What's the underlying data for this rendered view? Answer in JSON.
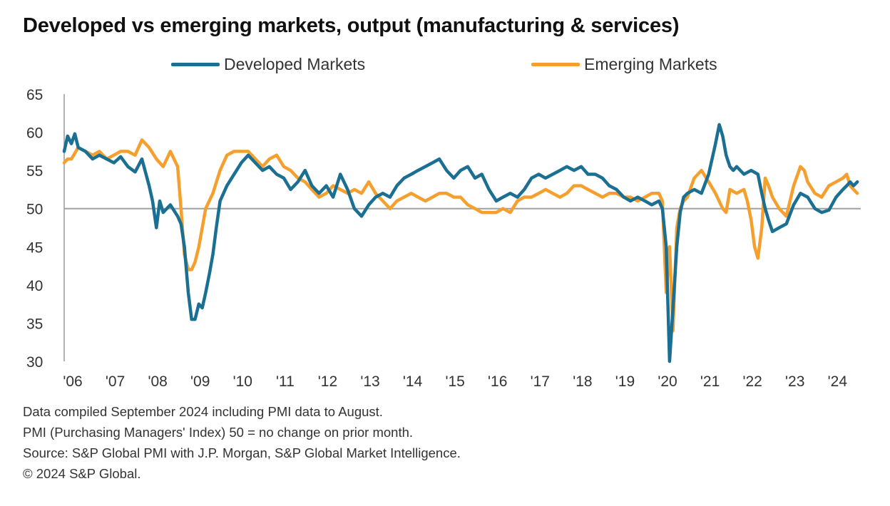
{
  "chart_data": {
    "type": "line",
    "title": "Developed vs emerging markets, output (manufacturing & services)",
    "xlabel": "",
    "ylabel": "",
    "ylim": [
      30,
      65
    ],
    "yticks": [
      30,
      35,
      40,
      45,
      50,
      55,
      60,
      65
    ],
    "xlim": [
      2006.0,
      2024.75
    ],
    "xticks": [
      "'06",
      "'07",
      "'08",
      "'09",
      "'10",
      "'11",
      "'12",
      "'13",
      "'14",
      "'15",
      "'16",
      "'17",
      "'18",
      "'19",
      "'20",
      "'21",
      "'22",
      "'23",
      "'24"
    ],
    "reference_line": 50,
    "legend_position": "top",
    "grid": false,
    "series": [
      {
        "name": "Developed Markets",
        "color": "#1a6f93",
        "points": [
          [
            2006.0,
            57.5
          ],
          [
            2006.08,
            59.5
          ],
          [
            2006.17,
            58.5
          ],
          [
            2006.25,
            59.8
          ],
          [
            2006.33,
            58.0
          ],
          [
            2006.5,
            57.5
          ],
          [
            2006.67,
            56.5
          ],
          [
            2006.83,
            57.0
          ],
          [
            2007.0,
            56.5
          ],
          [
            2007.17,
            56.0
          ],
          [
            2007.33,
            56.8
          ],
          [
            2007.5,
            55.5
          ],
          [
            2007.67,
            54.8
          ],
          [
            2007.83,
            56.5
          ],
          [
            2008.0,
            53.0
          ],
          [
            2008.08,
            51.0
          ],
          [
            2008.17,
            47.5
          ],
          [
            2008.25,
            51.0
          ],
          [
            2008.33,
            49.5
          ],
          [
            2008.5,
            50.5
          ],
          [
            2008.67,
            49.0
          ],
          [
            2008.75,
            48.0
          ],
          [
            2008.83,
            45.0
          ],
          [
            2008.92,
            39.0
          ],
          [
            2009.0,
            35.5
          ],
          [
            2009.08,
            35.5
          ],
          [
            2009.17,
            37.5
          ],
          [
            2009.25,
            37.0
          ],
          [
            2009.33,
            39.0
          ],
          [
            2009.42,
            41.5
          ],
          [
            2009.5,
            44.0
          ],
          [
            2009.58,
            47.5
          ],
          [
            2009.67,
            51.0
          ],
          [
            2009.83,
            53.0
          ],
          [
            2010.0,
            54.5
          ],
          [
            2010.17,
            56.0
          ],
          [
            2010.33,
            57.0
          ],
          [
            2010.5,
            56.0
          ],
          [
            2010.67,
            55.0
          ],
          [
            2010.83,
            55.5
          ],
          [
            2011.0,
            54.5
          ],
          [
            2011.17,
            54.0
          ],
          [
            2011.33,
            52.5
          ],
          [
            2011.5,
            53.5
          ],
          [
            2011.67,
            55.0
          ],
          [
            2011.83,
            53.0
          ],
          [
            2012.0,
            52.0
          ],
          [
            2012.17,
            53.0
          ],
          [
            2012.33,
            51.5
          ],
          [
            2012.5,
            54.5
          ],
          [
            2012.67,
            52.5
          ],
          [
            2012.83,
            50.0
          ],
          [
            2013.0,
            49.0
          ],
          [
            2013.17,
            50.5
          ],
          [
            2013.33,
            51.5
          ],
          [
            2013.5,
            52.0
          ],
          [
            2013.67,
            51.5
          ],
          [
            2013.83,
            53.0
          ],
          [
            2014.0,
            54.0
          ],
          [
            2014.17,
            54.5
          ],
          [
            2014.33,
            55.0
          ],
          [
            2014.5,
            55.5
          ],
          [
            2014.67,
            56.0
          ],
          [
            2014.83,
            56.5
          ],
          [
            2015.0,
            55.0
          ],
          [
            2015.17,
            54.0
          ],
          [
            2015.33,
            55.0
          ],
          [
            2015.5,
            55.5
          ],
          [
            2015.67,
            54.0
          ],
          [
            2015.83,
            54.5
          ],
          [
            2016.0,
            52.5
          ],
          [
            2016.17,
            51.0
          ],
          [
            2016.33,
            51.5
          ],
          [
            2016.5,
            52.0
          ],
          [
            2016.67,
            51.5
          ],
          [
            2016.83,
            52.5
          ],
          [
            2017.0,
            54.0
          ],
          [
            2017.17,
            54.5
          ],
          [
            2017.33,
            54.0
          ],
          [
            2017.5,
            54.5
          ],
          [
            2017.67,
            55.0
          ],
          [
            2017.83,
            55.5
          ],
          [
            2018.0,
            55.0
          ],
          [
            2018.17,
            55.5
          ],
          [
            2018.33,
            54.5
          ],
          [
            2018.5,
            54.5
          ],
          [
            2018.67,
            54.0
          ],
          [
            2018.83,
            53.0
          ],
          [
            2019.0,
            52.5
          ],
          [
            2019.17,
            51.5
          ],
          [
            2019.33,
            51.0
          ],
          [
            2019.5,
            51.5
          ],
          [
            2019.67,
            51.0
          ],
          [
            2019.83,
            50.5
          ],
          [
            2020.0,
            51.0
          ],
          [
            2020.08,
            50.0
          ],
          [
            2020.17,
            45.0
          ],
          [
            2020.25,
            30.0
          ],
          [
            2020.33,
            37.0
          ],
          [
            2020.42,
            45.0
          ],
          [
            2020.5,
            49.5
          ],
          [
            2020.58,
            51.5
          ],
          [
            2020.67,
            52.0
          ],
          [
            2020.83,
            52.5
          ],
          [
            2021.0,
            52.0
          ],
          [
            2021.17,
            54.5
          ],
          [
            2021.33,
            58.5
          ],
          [
            2021.42,
            61.0
          ],
          [
            2021.5,
            59.5
          ],
          [
            2021.58,
            57.0
          ],
          [
            2021.67,
            55.5
          ],
          [
            2021.75,
            55.0
          ],
          [
            2021.83,
            55.5
          ],
          [
            2022.0,
            54.5
          ],
          [
            2022.17,
            55.0
          ],
          [
            2022.33,
            54.5
          ],
          [
            2022.42,
            52.0
          ],
          [
            2022.5,
            50.0
          ],
          [
            2022.58,
            48.5
          ],
          [
            2022.67,
            47.0
          ],
          [
            2022.83,
            47.5
          ],
          [
            2023.0,
            48.0
          ],
          [
            2023.17,
            50.5
          ],
          [
            2023.33,
            52.0
          ],
          [
            2023.5,
            51.5
          ],
          [
            2023.67,
            50.0
          ],
          [
            2023.83,
            49.5
          ],
          [
            2024.0,
            49.8
          ],
          [
            2024.17,
            51.5
          ],
          [
            2024.33,
            52.5
          ],
          [
            2024.42,
            53.0
          ],
          [
            2024.5,
            53.5
          ],
          [
            2024.58,
            53.0
          ],
          [
            2024.67,
            53.5
          ]
        ]
      },
      {
        "name": "Emerging Markets",
        "color": "#f5a02e",
        "points": [
          [
            2006.0,
            56.0
          ],
          [
            2006.08,
            56.5
          ],
          [
            2006.17,
            56.5
          ],
          [
            2006.33,
            58.0
          ],
          [
            2006.5,
            57.5
          ],
          [
            2006.67,
            57.0
          ],
          [
            2006.83,
            57.5
          ],
          [
            2007.0,
            56.5
          ],
          [
            2007.17,
            57.0
          ],
          [
            2007.33,
            57.5
          ],
          [
            2007.5,
            57.5
          ],
          [
            2007.67,
            57.0
          ],
          [
            2007.83,
            59.0
          ],
          [
            2008.0,
            58.0
          ],
          [
            2008.17,
            56.5
          ],
          [
            2008.33,
            55.5
          ],
          [
            2008.5,
            57.5
          ],
          [
            2008.67,
            55.5
          ],
          [
            2008.75,
            50.0
          ],
          [
            2008.83,
            44.0
          ],
          [
            2008.92,
            42.0
          ],
          [
            2009.0,
            42.0
          ],
          [
            2009.08,
            43.0
          ],
          [
            2009.17,
            45.0
          ],
          [
            2009.25,
            47.5
          ],
          [
            2009.33,
            50.0
          ],
          [
            2009.5,
            52.0
          ],
          [
            2009.67,
            55.0
          ],
          [
            2009.83,
            57.0
          ],
          [
            2010.0,
            57.5
          ],
          [
            2010.17,
            57.5
          ],
          [
            2010.33,
            57.5
          ],
          [
            2010.5,
            56.5
          ],
          [
            2010.67,
            55.5
          ],
          [
            2010.83,
            56.5
          ],
          [
            2011.0,
            57.0
          ],
          [
            2011.17,
            55.5
          ],
          [
            2011.33,
            55.0
          ],
          [
            2011.5,
            54.0
          ],
          [
            2011.67,
            53.5
          ],
          [
            2011.83,
            52.5
          ],
          [
            2012.0,
            51.5
          ],
          [
            2012.17,
            52.0
          ],
          [
            2012.33,
            53.0
          ],
          [
            2012.5,
            52.5
          ],
          [
            2012.67,
            52.0
          ],
          [
            2012.83,
            52.5
          ],
          [
            2013.0,
            52.0
          ],
          [
            2013.17,
            53.5
          ],
          [
            2013.33,
            52.0
          ],
          [
            2013.5,
            51.0
          ],
          [
            2013.67,
            50.0
          ],
          [
            2013.83,
            51.0
          ],
          [
            2014.0,
            51.5
          ],
          [
            2014.17,
            52.0
          ],
          [
            2014.33,
            51.5
          ],
          [
            2014.5,
            51.0
          ],
          [
            2014.67,
            51.5
          ],
          [
            2014.83,
            52.0
          ],
          [
            2015.0,
            52.0
          ],
          [
            2015.17,
            51.5
          ],
          [
            2015.33,
            51.5
          ],
          [
            2015.5,
            50.5
          ],
          [
            2015.67,
            50.0
          ],
          [
            2015.83,
            49.5
          ],
          [
            2016.0,
            49.5
          ],
          [
            2016.17,
            49.5
          ],
          [
            2016.33,
            50.0
          ],
          [
            2016.5,
            49.5
          ],
          [
            2016.67,
            51.0
          ],
          [
            2016.83,
            51.5
          ],
          [
            2017.0,
            51.5
          ],
          [
            2017.17,
            52.0
          ],
          [
            2017.33,
            52.5
          ],
          [
            2017.5,
            52.0
          ],
          [
            2017.67,
            51.5
          ],
          [
            2017.83,
            52.0
          ],
          [
            2018.0,
            53.0
          ],
          [
            2018.17,
            53.0
          ],
          [
            2018.33,
            52.5
          ],
          [
            2018.5,
            52.0
          ],
          [
            2018.67,
            51.5
          ],
          [
            2018.83,
            52.0
          ],
          [
            2019.0,
            52.0
          ],
          [
            2019.17,
            51.5
          ],
          [
            2019.33,
            51.5
          ],
          [
            2019.5,
            51.0
          ],
          [
            2019.67,
            51.5
          ],
          [
            2019.83,
            52.0
          ],
          [
            2020.0,
            52.0
          ],
          [
            2020.08,
            51.0
          ],
          [
            2020.17,
            39.0
          ],
          [
            2020.25,
            45.0
          ],
          [
            2020.33,
            34.0
          ],
          [
            2020.42,
            47.5
          ],
          [
            2020.5,
            50.0
          ],
          [
            2020.58,
            51.0
          ],
          [
            2020.67,
            51.5
          ],
          [
            2020.83,
            54.0
          ],
          [
            2021.0,
            55.0
          ],
          [
            2021.17,
            53.5
          ],
          [
            2021.33,
            52.0
          ],
          [
            2021.5,
            50.0
          ],
          [
            2021.58,
            49.5
          ],
          [
            2021.67,
            52.5
          ],
          [
            2021.83,
            52.0
          ],
          [
            2022.0,
            52.5
          ],
          [
            2022.08,
            51.0
          ],
          [
            2022.17,
            48.5
          ],
          [
            2022.25,
            45.0
          ],
          [
            2022.33,
            43.5
          ],
          [
            2022.42,
            47.5
          ],
          [
            2022.5,
            54.0
          ],
          [
            2022.58,
            53.0
          ],
          [
            2022.67,
            51.5
          ],
          [
            2022.83,
            50.0
          ],
          [
            2023.0,
            49.0
          ],
          [
            2023.17,
            53.0
          ],
          [
            2023.33,
            55.5
          ],
          [
            2023.42,
            55.0
          ],
          [
            2023.5,
            53.5
          ],
          [
            2023.67,
            52.0
          ],
          [
            2023.83,
            51.5
          ],
          [
            2024.0,
            53.0
          ],
          [
            2024.17,
            53.5
          ],
          [
            2024.33,
            54.0
          ],
          [
            2024.42,
            54.5
          ],
          [
            2024.5,
            53.0
          ],
          [
            2024.58,
            52.5
          ],
          [
            2024.67,
            52.0
          ]
        ]
      }
    ]
  },
  "legend": {
    "developed_label": "Developed Markets",
    "emerging_label": "Emerging Markets"
  },
  "footnotes": [
    "Data compiled September 2024 including PMI data to August.",
    "PMI (Purchasing Managers' Index) 50 = no change on prior month.",
    "Source: S&P Global PMI with J.P. Morgan, S&P Global Market Intelligence.",
    "© 2024 S&P Global."
  ]
}
